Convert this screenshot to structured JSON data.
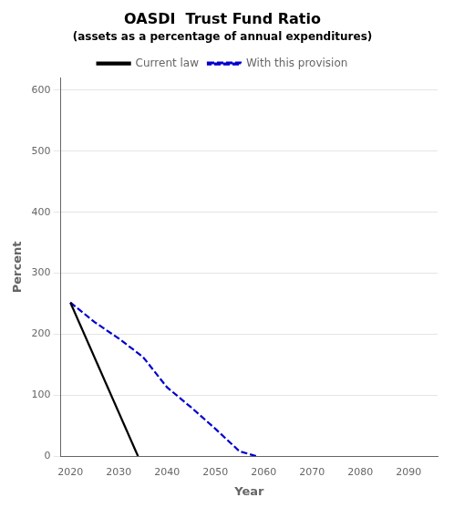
{
  "chart_data": {
    "type": "line",
    "title": "OASDI  Trust Fund Ratio",
    "subtitle": "(assets as a percentage of annual expenditures)",
    "xlabel": "Year",
    "ylabel": "Percent",
    "series": [
      {
        "name": "Current law",
        "color": "#000000",
        "line_style": "solid",
        "x": [
          2020,
          2034
        ],
        "values": [
          252,
          0
        ]
      },
      {
        "name": "With this provision",
        "color": "#0000cc",
        "line_style": "dashed",
        "x": [
          2020,
          2025,
          2030,
          2035,
          2040,
          2045,
          2050,
          2055,
          2058.5
        ],
        "values": [
          252,
          220,
          193,
          163,
          113,
          80,
          45,
          8,
          0
        ]
      }
    ],
    "xlim": [
      2018,
      2096
    ],
    "xticks": [
      2020,
      2030,
      2040,
      2050,
      2060,
      2070,
      2080,
      2090
    ],
    "ylim": [
      0,
      620
    ],
    "yticks": [
      0,
      100,
      200,
      300,
      400,
      500,
      600
    ],
    "grid": "y",
    "legend": "top"
  }
}
